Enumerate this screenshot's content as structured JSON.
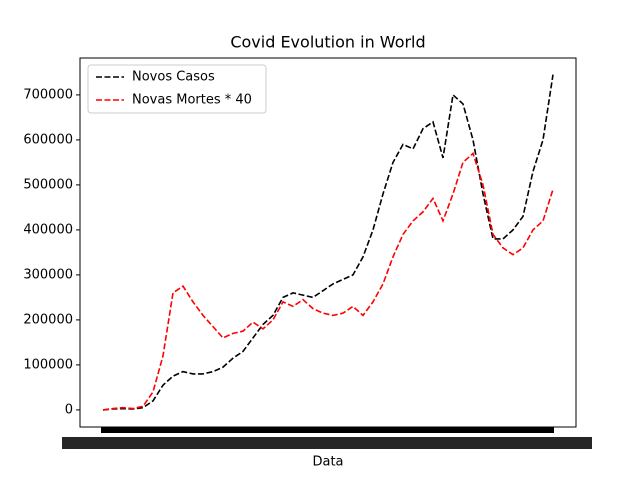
{
  "chart_data": {
    "type": "line",
    "title": "Covid Evolution in World",
    "xlabel": "Data",
    "categories": [
      null,
      null,
      null,
      null,
      null,
      null,
      null,
      null,
      null,
      null,
      null,
      null,
      null,
      null,
      null,
      null,
      null,
      null,
      null,
      null,
      null,
      null,
      null,
      null,
      null,
      null,
      null,
      null,
      null,
      null,
      null,
      null,
      null,
      null,
      null,
      null,
      null,
      null,
      null,
      null,
      null,
      null,
      null,
      null,
      null,
      null
    ],
    "series": [
      {
        "name": "Novos Casos",
        "color": "#000000",
        "dash": true,
        "values": [
          0,
          2000,
          3000,
          2000,
          5000,
          20000,
          55000,
          75000,
          85000,
          80000,
          80000,
          85000,
          95000,
          115000,
          130000,
          160000,
          190000,
          210000,
          250000,
          260000,
          255000,
          250000,
          265000,
          280000,
          290000,
          300000,
          340000,
          400000,
          480000,
          550000,
          590000,
          580000,
          625000,
          640000,
          560000,
          700000,
          680000,
          600000,
          480000,
          380000,
          380000,
          400000,
          430000,
          530000,
          600000,
          745000
        ]
      },
      {
        "name": "Novas Mortes * 40",
        "color": "#ff0000",
        "dash": true,
        "values": [
          0,
          3000,
          5000,
          3000,
          8000,
          40000,
          120000,
          260000,
          275000,
          240000,
          210000,
          185000,
          160000,
          170000,
          175000,
          195000,
          180000,
          200000,
          240000,
          230000,
          245000,
          225000,
          215000,
          210000,
          215000,
          230000,
          210000,
          240000,
          280000,
          340000,
          390000,
          420000,
          440000,
          470000,
          420000,
          480000,
          550000,
          570000,
          500000,
          390000,
          360000,
          345000,
          360000,
          400000,
          420000,
          490000
        ]
      }
    ],
    "ylim": [
      -38000,
      782000
    ],
    "yticks": [
      0,
      100000,
      200000,
      300000,
      400000,
      500000,
      600000,
      700000
    ],
    "legend": "upper left",
    "grid": false
  }
}
